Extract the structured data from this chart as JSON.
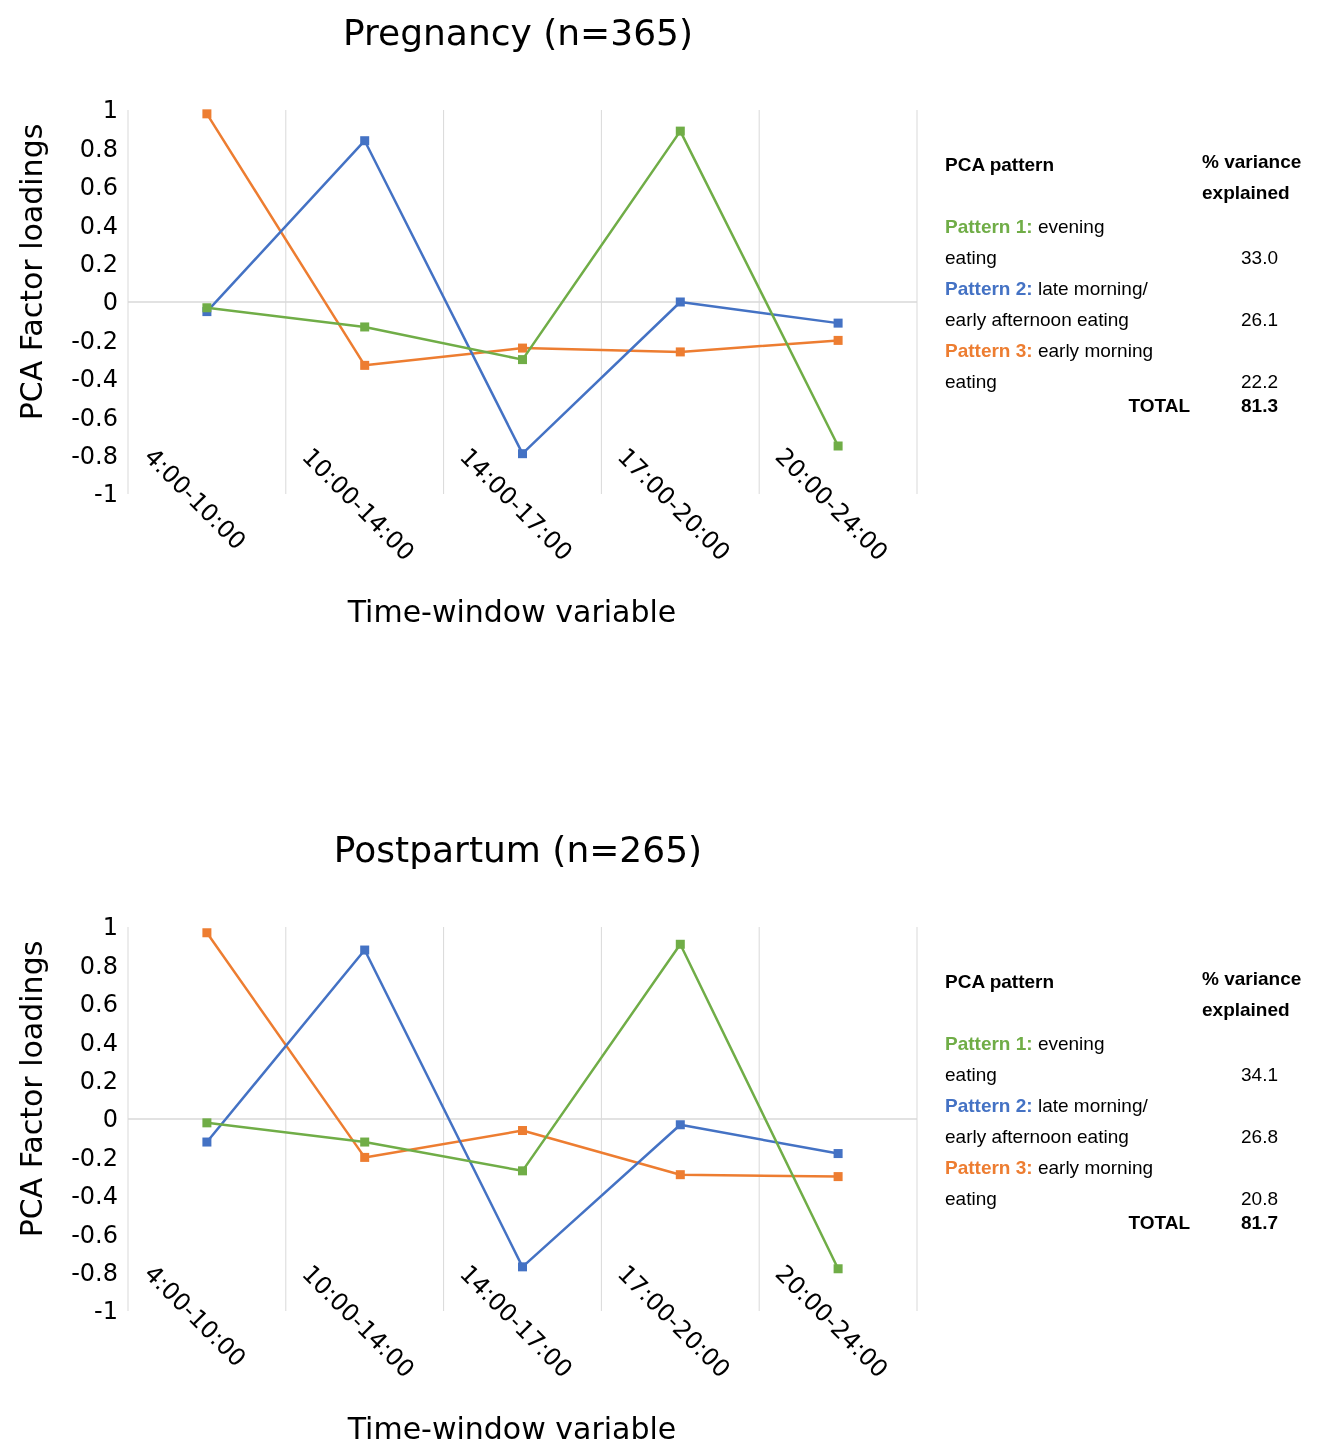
{
  "chart_data": [
    {
      "type": "line",
      "title": "Pregnancy (n=365)",
      "xlabel": "Time-window variable",
      "ylabel": "PCA Factor loadings",
      "categories": [
        "4:00-10:00",
        "10:00-14:00",
        "14:00-17:00",
        "17:00-20:00",
        "20:00-24:00"
      ],
      "ylim": [
        -1,
        1
      ],
      "yticks": [
        -1,
        -0.8,
        -0.6,
        -0.4,
        -0.2,
        0,
        0.2,
        0.4,
        0.6,
        0.8,
        1
      ],
      "grid": "x",
      "marker": "square",
      "legend": "right",
      "legend_title": "PCA pattern",
      "ref_lines": [
        {
          "axis": "y",
          "value": 0,
          "color": "#d9d9d9"
        }
      ],
      "series": [
        {
          "name": "Pattern 1: evening eating",
          "color": "#70ad47",
          "values": [
            -0.03,
            -0.13,
            -0.3,
            0.89,
            -0.75
          ]
        },
        {
          "name": "Pattern 2: late morning/ early afternoon eating",
          "color": "#4472c4",
          "values": [
            -0.05,
            0.84,
            -0.79,
            0.0,
            -0.11
          ]
        },
        {
          "name": "Pattern 3: early morning eating",
          "color": "#ed7d31",
          "values": [
            0.98,
            -0.33,
            -0.24,
            -0.26,
            -0.2
          ]
        }
      ],
      "annotations": [
        "% variance explained",
        "33.0",
        "26.1",
        "22.2",
        "TOTAL",
        "81.3"
      ]
    },
    {
      "type": "line",
      "title": "Postpartum (n=265)",
      "xlabel": "Time-window variable",
      "ylabel": "PCA Factor loadings",
      "categories": [
        "4:00-10:00",
        "10:00-14:00",
        "14:00-17:00",
        "17:00-20:00",
        "20:00-24:00"
      ],
      "ylim": [
        -1,
        1
      ],
      "yticks": [
        -1,
        -0.8,
        -0.6,
        -0.4,
        -0.2,
        0,
        0.2,
        0.4,
        0.6,
        0.8,
        1
      ],
      "grid": "x",
      "marker": "square",
      "legend": "right",
      "legend_title": "PCA pattern",
      "ref_lines": [
        {
          "axis": "y",
          "value": 0,
          "color": "#d9d9d9"
        }
      ],
      "series": [
        {
          "name": "Pattern 1: evening eating",
          "color": "#70ad47",
          "values": [
            -0.02,
            -0.12,
            -0.27,
            0.91,
            -0.78
          ]
        },
        {
          "name": "Pattern 2: late morning/ early afternoon eating",
          "color": "#4472c4",
          "values": [
            -0.12,
            0.88,
            -0.77,
            -0.03,
            -0.18
          ]
        },
        {
          "name": "Pattern 3: early morning eating",
          "color": "#ed7d31",
          "values": [
            0.97,
            -0.2,
            -0.06,
            -0.29,
            -0.3
          ]
        }
      ],
      "annotations": [
        "% variance explained",
        "34.1",
        "26.8",
        "20.8",
        "TOTAL",
        "81.7"
      ]
    }
  ]
}
